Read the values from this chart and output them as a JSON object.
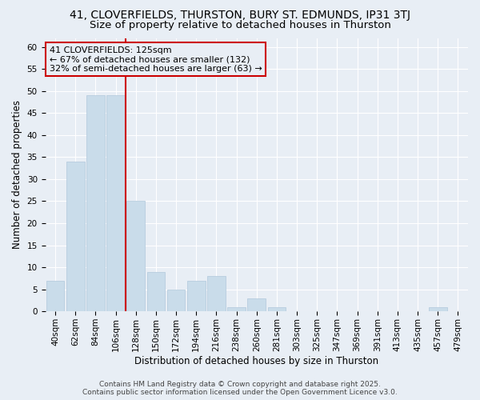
{
  "title_line1": "41, CLOVERFIELDS, THURSTON, BURY ST. EDMUNDS, IP31 3TJ",
  "title_line2": "Size of property relative to detached houses in Thurston",
  "xlabel": "Distribution of detached houses by size in Thurston",
  "ylabel": "Number of detached properties",
  "categories": [
    "40sqm",
    "62sqm",
    "84sqm",
    "106sqm",
    "128sqm",
    "150sqm",
    "172sqm",
    "194sqm",
    "216sqm",
    "238sqm",
    "260sqm",
    "281sqm",
    "303sqm",
    "325sqm",
    "347sqm",
    "369sqm",
    "391sqm",
    "413sqm",
    "435sqm",
    "457sqm",
    "479sqm"
  ],
  "values": [
    7,
    34,
    49,
    49,
    25,
    9,
    5,
    7,
    8,
    1,
    3,
    1,
    0,
    0,
    0,
    0,
    0,
    0,
    0,
    1,
    0
  ],
  "bar_color": "#c9dcea",
  "bar_edge_color": "#b0c8db",
  "ylim": [
    0,
    62
  ],
  "yticks": [
    0,
    5,
    10,
    15,
    20,
    25,
    30,
    35,
    40,
    45,
    50,
    55,
    60
  ],
  "vline_color": "#cc0000",
  "vline_x_index": 3.5,
  "annotation_title": "41 CLOVERFIELDS: 125sqm",
  "annotation_line1": "← 67% of detached houses are smaller (132)",
  "annotation_line2": "32% of semi-detached houses are larger (63) →",
  "annotation_box_color": "#cc0000",
  "background_color": "#e8eef5",
  "grid_color": "#ffffff",
  "footer_line1": "Contains HM Land Registry data © Crown copyright and database right 2025.",
  "footer_line2": "Contains public sector information licensed under the Open Government Licence v3.0.",
  "title_fontsize": 10,
  "subtitle_fontsize": 9.5,
  "axis_label_fontsize": 8.5,
  "tick_fontsize": 7.5,
  "annotation_fontsize": 8,
  "footer_fontsize": 6.5
}
